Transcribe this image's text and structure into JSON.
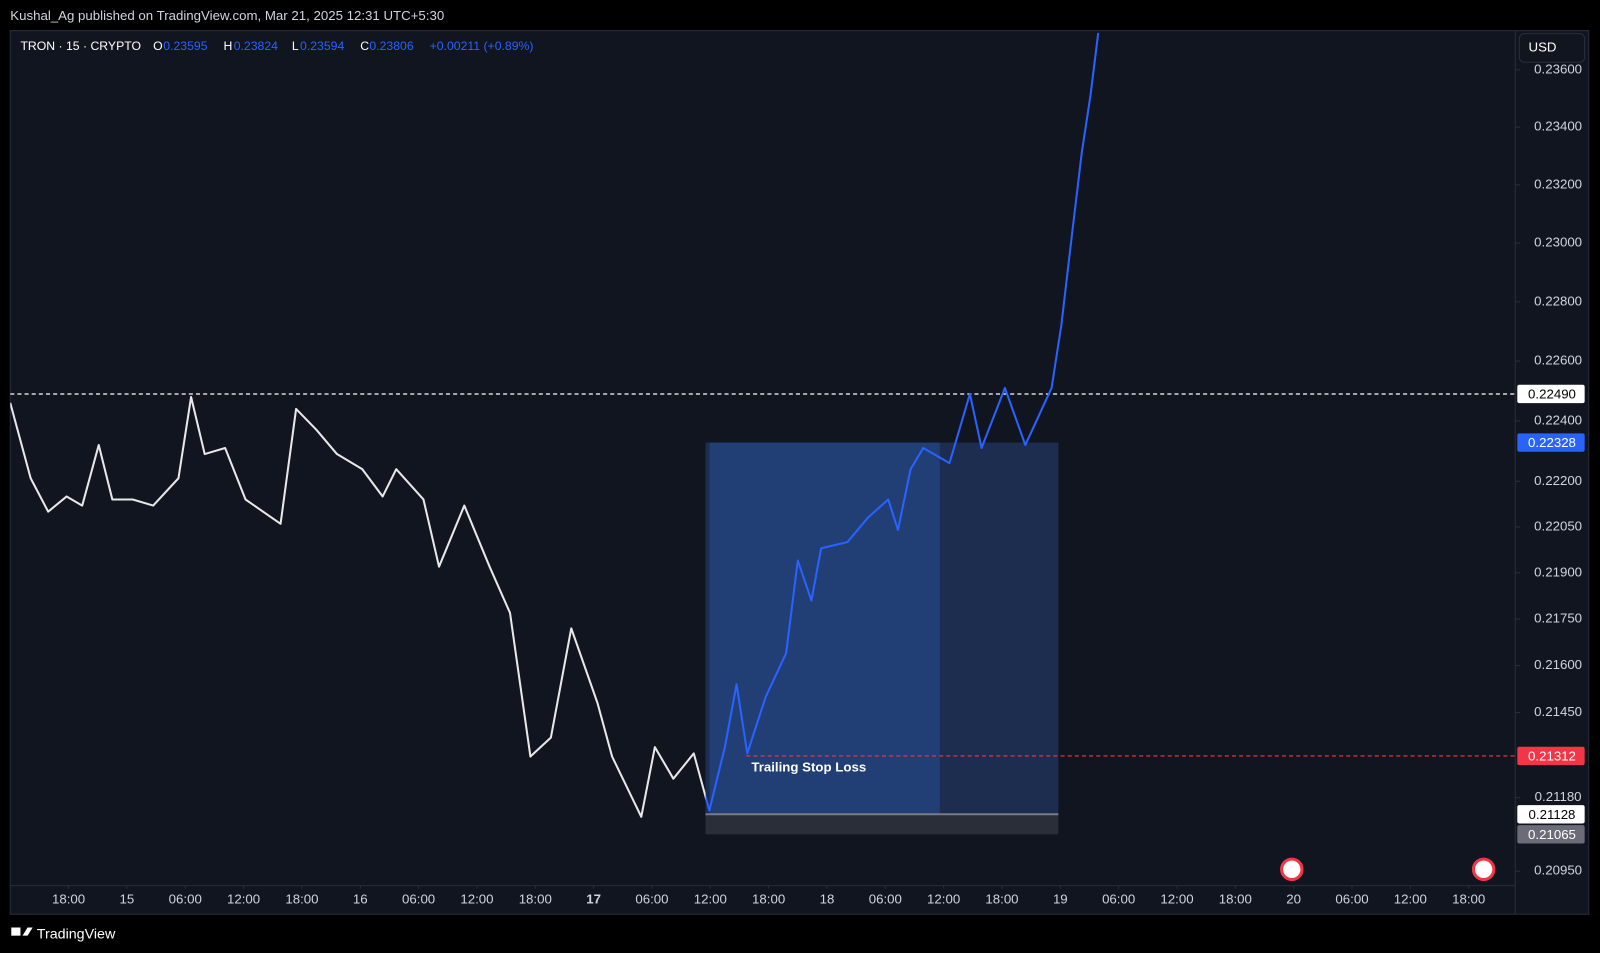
{
  "header": {
    "title": "Kushal_Ag published on TradingView.com, Mar 21, 2025 12:31 UTC+5:30"
  },
  "legend": {
    "symbol": "TRON · 15 · CRYPTO",
    "open_label": "O",
    "open": "0.23595",
    "high_label": "H",
    "high": "0.23824",
    "low_label": "L",
    "low": "0.23594",
    "close_label": "C",
    "close": "0.23806",
    "change": "+0.00211 (+0.89%)"
  },
  "currency_button": "USD",
  "footer": {
    "brand": "TradingView"
  },
  "chart_data": {
    "type": "line",
    "log_scale": true,
    "grid": false,
    "colors": {
      "before_entry": "#e8e8e8",
      "after_entry": "#2962ff"
    },
    "x": [
      -6,
      -3.9,
      -2.1,
      -0.2,
      1.4,
      3.1,
      4.5,
      6.6,
      8.7,
      11.3,
      12.6,
      14,
      16.1,
      18.2,
      21.8,
      23.4,
      25.5,
      27.6,
      30.2,
      32.3,
      33.7,
      36.5,
      38.1,
      40.7,
      43.3,
      45.4,
      47.5,
      49.6,
      51.7,
      54.4,
      55.9,
      58.9,
      60.3,
      62.2,
      64.3,
      65.9,
      67.5,
      68.7,
      69.8,
      71.7,
      73.8,
      75,
      76.4,
      77.4,
      80.1,
      82.2,
      84.3,
      85.3,
      86.6,
      87.9,
      90.6,
      92.7,
      93.9,
      96.3,
      98.4,
      101.1,
      102.1,
      103.2,
      104.2,
      105.1,
      105.9
    ],
    "series": [
      {
        "name": "TRON",
        "values": [
          0.2246,
          0.2221,
          0.221,
          0.2215,
          0.2212,
          0.2232,
          0.2214,
          0.2214,
          0.2212,
          0.2221,
          0.2248,
          0.2229,
          0.2231,
          0.2214,
          0.2206,
          0.2244,
          0.2237,
          0.2229,
          0.2224,
          0.2215,
          0.2224,
          0.2214,
          0.2192,
          0.2212,
          0.2192,
          0.2177,
          0.2131,
          0.2137,
          0.2172,
          0.2148,
          0.2131,
          0.2112,
          0.2134,
          0.2124,
          0.2132,
          0.2114,
          0.2134,
          0.2154,
          0.2132,
          0.215,
          0.2164,
          0.2194,
          0.2181,
          0.2198,
          0.22,
          0.2208,
          0.2214,
          0.2204,
          0.2224,
          0.2231,
          0.2226,
          0.2249,
          0.2231,
          0.2251,
          0.2232,
          0.2251,
          0.2272,
          0.2303,
          0.2331,
          0.2351,
          0.2373
        ]
      }
    ],
    "xlim": [
      -6,
      149
    ],
    "xticks": [
      {
        "value": 0,
        "label": "18:00"
      },
      {
        "value": 6,
        "label": "15"
      },
      {
        "value": 12,
        "label": "06:00"
      },
      {
        "value": 18,
        "label": "12:00"
      },
      {
        "value": 24,
        "label": "18:00"
      },
      {
        "value": 30,
        "label": "16"
      },
      {
        "value": 36,
        "label": "06:00"
      },
      {
        "value": 42,
        "label": "12:00"
      },
      {
        "value": 48,
        "label": "18:00"
      },
      {
        "value": 54,
        "label": "17"
      },
      {
        "value": 60,
        "label": "06:00"
      },
      {
        "value": 66,
        "label": "12:00"
      },
      {
        "value": 72,
        "label": "18:00"
      },
      {
        "value": 78,
        "label": "18"
      },
      {
        "value": 84,
        "label": "06:00"
      },
      {
        "value": 90,
        "label": "12:00"
      },
      {
        "value": 96,
        "label": "18:00"
      },
      {
        "value": 102,
        "label": "19"
      },
      {
        "value": 108,
        "label": "06:00"
      },
      {
        "value": 114,
        "label": "12:00"
      },
      {
        "value": 120,
        "label": "18:00"
      },
      {
        "value": 126,
        "label": "20"
      },
      {
        "value": 132,
        "label": "06:00"
      },
      {
        "value": 138,
        "label": "12:00"
      },
      {
        "value": 144,
        "label": "18:00"
      }
    ],
    "ylim": [
      0.20905,
      0.23738
    ],
    "yticks": [
      {
        "value": 0.236,
        "label": "0.23600"
      },
      {
        "value": 0.234,
        "label": "0.23400"
      },
      {
        "value": 0.232,
        "label": "0.23200"
      },
      {
        "value": 0.23,
        "label": "0.23000"
      },
      {
        "value": 0.228,
        "label": "0.22800"
      },
      {
        "value": 0.226,
        "label": "0.22600"
      },
      {
        "value": 0.224,
        "label": "0.22400"
      },
      {
        "value": 0.222,
        "label": "0.22200"
      },
      {
        "value": 0.2205,
        "label": "0.22050"
      },
      {
        "value": 0.219,
        "label": "0.21900"
      },
      {
        "value": 0.2175,
        "label": "0.21750"
      },
      {
        "value": 0.216,
        "label": "0.21600"
      },
      {
        "value": 0.2145,
        "label": "0.21450"
      },
      {
        "value": 0.2118,
        "label": "0.21180"
      },
      {
        "value": 0.2095,
        "label": "0.20950"
      }
    ],
    "levels": [
      {
        "value": 0.2249,
        "label": "0.22490",
        "color": "#ffffff",
        "text_color": "#000000",
        "line_color": "#ffffff"
      },
      {
        "value": 0.22328,
        "label": "0.22328",
        "color": "#2962ff",
        "text_color": "#ffffff"
      },
      {
        "value": 0.21312,
        "label": "0.21312",
        "color": "#f23645",
        "text_color": "#ffffff",
        "line_color": "#f23645"
      },
      {
        "value": 0.21128,
        "label": "0.21128",
        "color": "#ffffff",
        "text_color": "#000000"
      },
      {
        "value": 0.21065,
        "label": "0.21065",
        "color": "#6a6d78",
        "text_color": "#ffffff"
      }
    ],
    "position": {
      "start_x": 65.5,
      "end_x": 101.8,
      "filled_until": 89.6,
      "entry": 0.21128,
      "target": 0.22328,
      "stop": 0.21065,
      "annotation": "Trailing Stop Loss"
    }
  }
}
